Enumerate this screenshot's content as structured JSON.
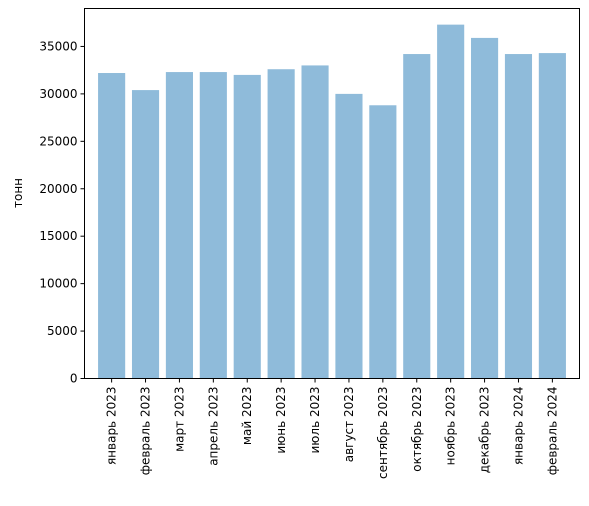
{
  "chart_data": {
    "type": "bar",
    "title": "",
    "xlabel": "",
    "ylabel": "тонн",
    "ylim": [
      0,
      39000
    ],
    "yticks": [
      0,
      5000,
      10000,
      15000,
      20000,
      25000,
      30000,
      35000
    ],
    "grid": false,
    "bar_color": "#8fbbda",
    "categories": [
      "январь 2023",
      "февраль 2023",
      "март 2023",
      "апрель 2023",
      "май 2023",
      "июнь 2023",
      "июль 2023",
      "август 2023",
      "сентябрь 2023",
      "октябрь 2023",
      "ноябрь 2023",
      "декабрь 2023",
      "январь 2024",
      "февраль 2024"
    ],
    "values": [
      32200,
      30400,
      32300,
      32300,
      32000,
      32600,
      33000,
      30000,
      28800,
      34200,
      37300,
      35900,
      34200,
      34300
    ]
  }
}
